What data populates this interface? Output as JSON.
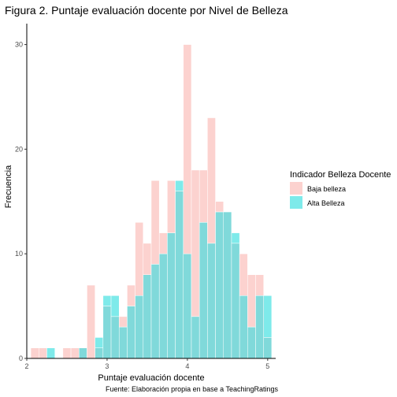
{
  "chart_data": {
    "type": "bar",
    "subtype": "histogram-overlay",
    "title": "Figura 2. Puntaje evaluación docente por Nivel de Belleza",
    "xlabel": "Puntaje evaluación docente",
    "ylabel": "Frecuencia",
    "caption": "Fuente: Elaboración propia en base a TeachingRatings",
    "xlim": [
      2.0,
      5.1
    ],
    "ylim": [
      0,
      32
    ],
    "x_ticks": [
      "2",
      "3",
      "4",
      "5"
    ],
    "y_ticks": [
      "0",
      "10",
      "20",
      "30"
    ],
    "bin_width": 0.1,
    "bins": [
      2.1,
      2.2,
      2.3,
      2.4,
      2.5,
      2.6,
      2.7,
      2.8,
      2.9,
      3.0,
      3.1,
      3.2,
      3.3,
      3.4,
      3.5,
      3.6,
      3.7,
      3.8,
      3.9,
      4.0,
      4.1,
      4.2,
      4.3,
      4.4,
      4.5,
      4.6,
      4.7,
      4.8,
      4.9,
      5.0
    ],
    "legend": {
      "title": "Indicador Belleza Docente",
      "position": "right"
    },
    "series": [
      {
        "name": "Baja belleza",
        "color": "#fcd2cf",
        "values": [
          1,
          1,
          0,
          0,
          1,
          1,
          1,
          7,
          1,
          5,
          4,
          4,
          7,
          13,
          11,
          17,
          12,
          17,
          16,
          30,
          18,
          18,
          23,
          15,
          14,
          11,
          10,
          8,
          8,
          2
        ]
      },
      {
        "name": "Alta Belleza",
        "color": "#7eeaea",
        "values": [
          0,
          0,
          1,
          0,
          0,
          0,
          1,
          0,
          2,
          6,
          6,
          3,
          5,
          6,
          8,
          9,
          10,
          12,
          17,
          10,
          4,
          13,
          11,
          14,
          14,
          12,
          6,
          3,
          6,
          6
        ]
      }
    ],
    "overlap_color": "#80d9da",
    "grid": false
  }
}
